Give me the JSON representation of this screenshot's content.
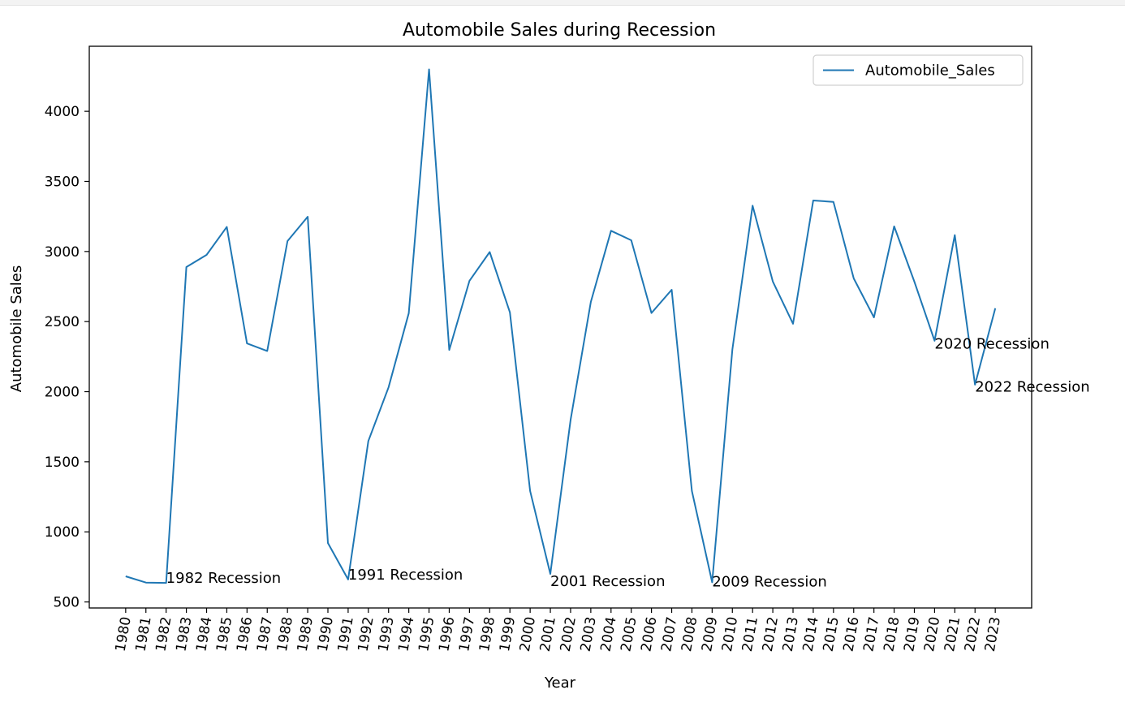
{
  "chart_data": {
    "type": "line",
    "title": "Automobile Sales during Recession",
    "xlabel": "Year",
    "ylabel": "Automobile Sales",
    "x": [
      1980,
      1981,
      1982,
      1983,
      1984,
      1985,
      1986,
      1987,
      1988,
      1989,
      1990,
      1991,
      1992,
      1993,
      1994,
      1995,
      1996,
      1997,
      1998,
      1999,
      2000,
      2001,
      2002,
      2003,
      2004,
      2005,
      2006,
      2007,
      2008,
      2009,
      2010,
      2011,
      2012,
      2013,
      2014,
      2015,
      2016,
      2017,
      2018,
      2019,
      2020,
      2021,
      2022,
      2023
    ],
    "series": [
      {
        "name": "Automobile_Sales",
        "color": "#1f77b4",
        "values": [
          683,
          638,
          636,
          2889,
          2976,
          3175,
          2344,
          2290,
          3074,
          3248,
          920,
          660,
          1648,
          2031,
          2560,
          4299,
          2298,
          2791,
          2996,
          2566,
          1292,
          700,
          1800,
          2640,
          3148,
          3080,
          2561,
          2727,
          1292,
          640,
          2302,
          3327,
          2786,
          2485,
          3364,
          3354,
          2808,
          2530,
          3179,
          2785,
          2363,
          3117,
          2050,
          2595
        ]
      }
    ],
    "xlim": [
      1978.2,
      2024.8
    ],
    "ylim": [
      457,
      4464
    ],
    "yticks": [
      500,
      1000,
      1500,
      2000,
      2500,
      3000,
      3500,
      4000
    ],
    "xtick_rotation": -80,
    "legend": {
      "position": "top-right",
      "label": "Automobile_Sales"
    },
    "annotations": [
      {
        "text": "1982 Recession",
        "x": 1982,
        "y": 636
      },
      {
        "text": "1991 Recession",
        "x": 1991,
        "y": 660
      },
      {
        "text": "2001 Recession",
        "x": 2001,
        "y": 612
      },
      {
        "text": "2009 Recession",
        "x": 2009,
        "y": 610
      },
      {
        "text": "2020 Recession",
        "x": 2020,
        "y": 2308
      },
      {
        "text": "2022 Recession",
        "x": 2022,
        "y": 2000
      }
    ],
    "grid": false
  }
}
